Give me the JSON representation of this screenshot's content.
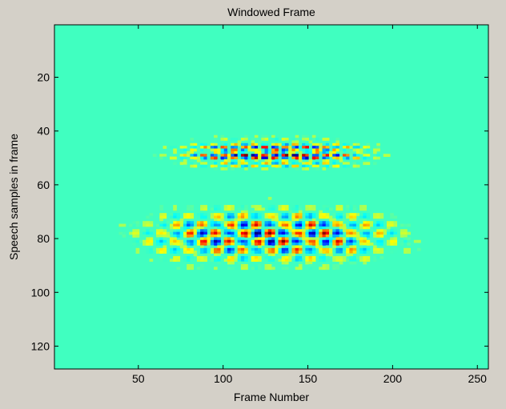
{
  "chart_data": {
    "type": "heatmap",
    "title": "Windowed Frame",
    "xlabel": "Frame Number",
    "ylabel": "Speech samples in frame",
    "xlim": [
      1,
      256
    ],
    "ylim": [
      1,
      128
    ],
    "y_direction": "reversed",
    "x_ticks": [
      50,
      100,
      150,
      200,
      250
    ],
    "y_ticks": [
      20,
      40,
      60,
      80,
      100,
      120
    ],
    "colormap": "jet",
    "background_value_color": "#40ffc0",
    "grid": false,
    "colorbar": false,
    "bands": [
      {
        "name": "",
        "sample_center": 48.5,
        "sample_halfwidth": 5,
        "frame_center": 130,
        "frame_halfwidth": 60,
        "amplitude": 1.0,
        "period_frames": 12,
        "period_samples": 2.8
      },
      {
        "name": "",
        "sample_center": 79,
        "sample_halfwidth": 10,
        "frame_center": 128,
        "frame_halfwidth": 78,
        "amplitude": 0.9,
        "period_frames": 16,
        "period_samples": 6.5
      }
    ]
  }
}
